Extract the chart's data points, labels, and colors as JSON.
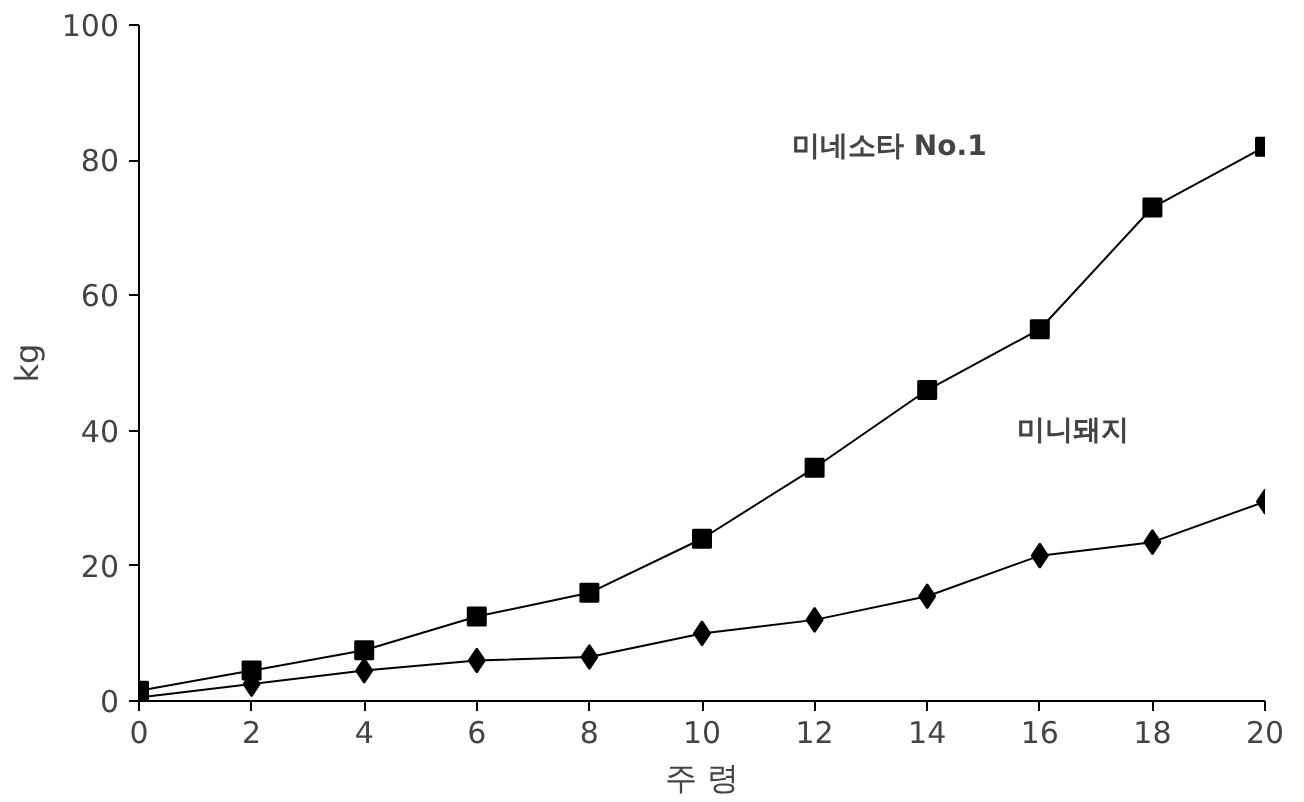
{
  "chart_data": {
    "type": "line",
    "xlabel": "주 령",
    "ylabel": "kg",
    "x": [
      0,
      2,
      4,
      6,
      8,
      10,
      12,
      14,
      16,
      18,
      20
    ],
    "series": [
      {
        "color": "#000000",
        "marker": "square",
        "values": [
          1.5,
          4.5,
          7.5,
          12.5,
          16,
          24,
          34.5,
          46,
          55,
          73,
          82
        ]
      },
      {
        "color": "#000000",
        "marker": "diamond",
        "values": [
          0.5,
          2.5,
          4.5,
          6,
          6.5,
          10,
          12,
          15.5,
          21.5,
          23.5,
          29.5
        ]
      }
    ],
    "annotations": [
      "미네소타 No.1",
      "미니돼지"
    ],
    "xlim": [
      0,
      20
    ],
    "ylim": [
      0,
      100
    ],
    "xticks": [
      0,
      2,
      4,
      6,
      8,
      10,
      12,
      14,
      16,
      18,
      20
    ],
    "yticks": [
      0,
      20,
      40,
      60,
      80,
      100
    ],
    "grid": false,
    "line_style": "solid"
  }
}
